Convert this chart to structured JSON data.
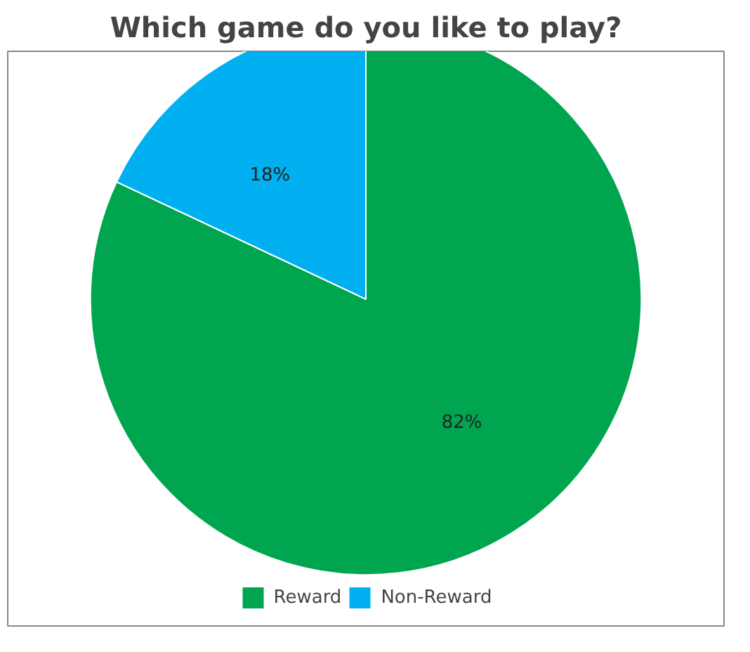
{
  "chart_data": {
    "type": "pie",
    "title": "Which game do you like to play?",
    "categories": [
      "Reward",
      "Non-Reward"
    ],
    "values": [
      82,
      18
    ],
    "colors": [
      "#00a550",
      "#00b0f0"
    ],
    "value_labels": [
      "82%",
      "18%"
    ],
    "legend": "bottom"
  }
}
